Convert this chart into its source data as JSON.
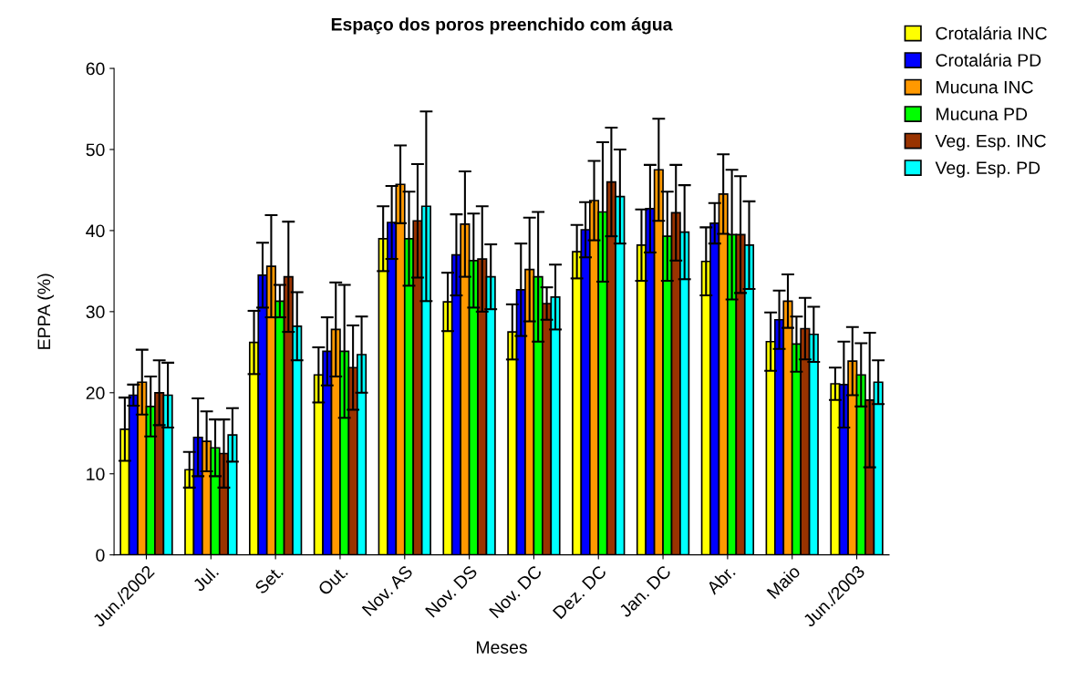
{
  "chart_data": {
    "type": "bar",
    "title": "Espaço dos poros preenchido com água",
    "xlabel": "Meses",
    "ylabel": "EPPA (%)",
    "categories": [
      "Jun./2002",
      "Jul.",
      "Set.",
      "Out.",
      "Nov. AS",
      "Nov. DS",
      "Nov. DC",
      "Dez. DC",
      "Jan. DC",
      "Abr.",
      "Maio",
      "Jun./2003"
    ],
    "ylim": [
      0,
      60
    ],
    "yticks": [
      0,
      10,
      20,
      30,
      40,
      50,
      60
    ],
    "grid": false,
    "legend": "top right",
    "series": [
      {
        "name": "Crotalária INC",
        "color": "#ffff00",
        "values": [
          15.5,
          10.5,
          26.2,
          22.2,
          39.0,
          31.2,
          27.5,
          37.4,
          38.2,
          36.2,
          26.3,
          21.1
        ],
        "errors": [
          3.9,
          2.2,
          3.9,
          3.4,
          4.0,
          3.6,
          3.4,
          3.3,
          4.4,
          4.2,
          3.6,
          2.0
        ]
      },
      {
        "name": "Crotalária PD",
        "color": "#0000ff",
        "values": [
          19.7,
          14.5,
          34.5,
          25.1,
          41.0,
          37.0,
          32.7,
          40.1,
          42.7,
          40.9,
          29.0,
          21.0
        ],
        "errors": [
          1.3,
          4.8,
          4.0,
          4.2,
          4.5,
          5.0,
          5.7,
          3.4,
          5.4,
          2.5,
          3.6,
          5.3
        ]
      },
      {
        "name": "Mucuna INC",
        "color": "#ff9900",
        "values": [
          21.3,
          14.0,
          35.6,
          27.8,
          45.7,
          40.8,
          35.2,
          43.7,
          47.5,
          44.5,
          31.3,
          23.9
        ],
        "errors": [
          4.0,
          3.7,
          6.3,
          5.8,
          4.8,
          6.5,
          6.4,
          4.9,
          6.3,
          4.9,
          3.3,
          4.2
        ]
      },
      {
        "name": "Mucuna PD",
        "color": "#00ff00",
        "values": [
          18.3,
          13.2,
          31.3,
          25.1,
          39.0,
          36.3,
          34.3,
          42.3,
          39.3,
          39.5,
          26.0,
          22.2
        ],
        "errors": [
          3.7,
          3.5,
          2.0,
          8.2,
          5.8,
          5.8,
          8.0,
          8.6,
          5.5,
          8.0,
          3.4,
          3.9
        ]
      },
      {
        "name": "Veg. Esp. INC",
        "color": "#993300",
        "values": [
          20.0,
          12.5,
          34.3,
          23.1,
          41.2,
          36.5,
          31.0,
          46.0,
          42.2,
          39.5,
          27.9,
          19.1
        ],
        "errors": [
          4.0,
          4.2,
          6.8,
          5.2,
          7.0,
          6.5,
          2.0,
          6.7,
          5.9,
          7.2,
          3.8,
          8.3
        ]
      },
      {
        "name": "Veg. Esp. PD",
        "color": "#00ffff",
        "values": [
          19.7,
          14.8,
          28.2,
          24.7,
          43.0,
          34.3,
          31.8,
          44.2,
          39.8,
          38.2,
          27.2,
          21.3
        ],
        "errors": [
          4.0,
          3.3,
          4.2,
          4.7,
          11.7,
          4.0,
          4.0,
          5.8,
          5.8,
          5.4,
          3.4,
          2.7
        ]
      }
    ]
  }
}
